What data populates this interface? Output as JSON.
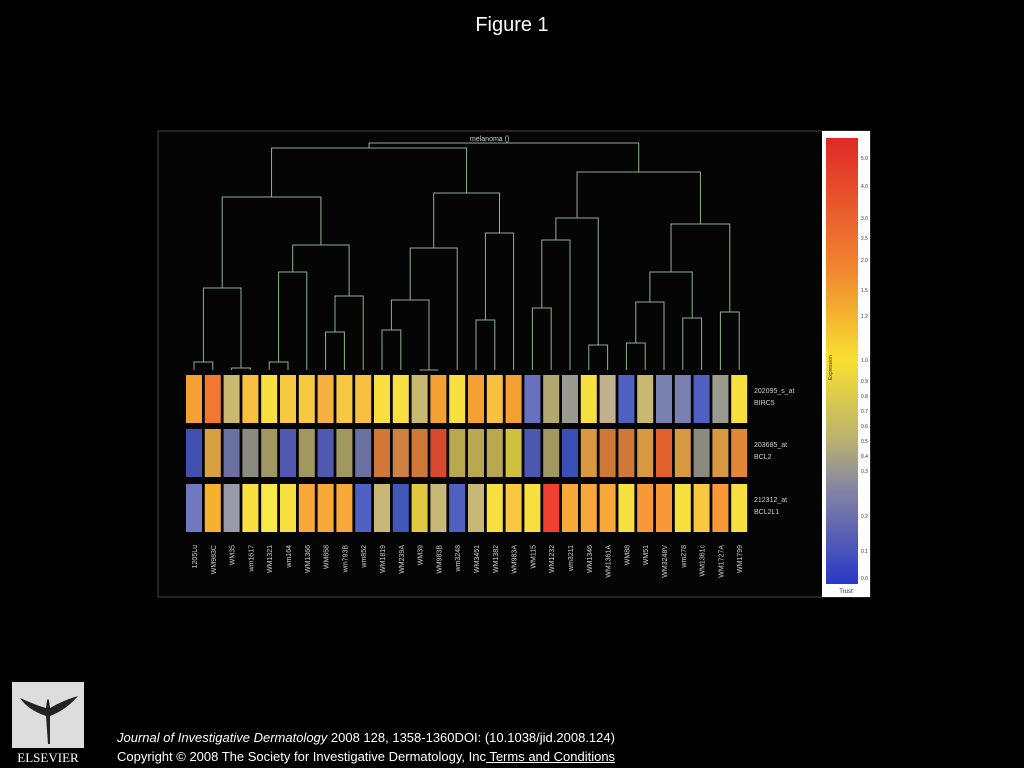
{
  "header": {
    "title": "Figure 1"
  },
  "figure": {
    "tree_label": "melanoma ()",
    "samples": [
      "1205Lu",
      "WM983C",
      "WM35",
      "wm1617",
      "WM1321",
      "wm164",
      "WM1366",
      "WM858",
      "wm793B",
      "wm852",
      "WM1819",
      "WM239A",
      "WM39",
      "WM983B",
      "wm3248",
      "WM3451",
      "WM1382",
      "WM983A",
      "WM115",
      "WM1232",
      "wm3211",
      "WM1346",
      "WM1361A",
      "WM88",
      "WM51",
      "WM3248V",
      "wm278",
      "WM1361c",
      "WM1727A",
      "WM1799"
    ],
    "rows": [
      {
        "probe": "202095_s_at",
        "gene": "BIRC5",
        "colors": [
          "#f5a033",
          "#f07830",
          "#c8b870",
          "#f8c040",
          "#f8e040",
          "#f8c840",
          "#f8c840",
          "#f5b040",
          "#f8c840",
          "#f8c040",
          "#f8e040",
          "#f8e040",
          "#c8b870",
          "#f5a033",
          "#f8e040",
          "#f5a033",
          "#f8c040",
          "#f5a033",
          "#6a70c0",
          "#b0a870",
          "#9a9a90",
          "#f8e040",
          "#c0b090",
          "#5060c0",
          "#c8b870",
          "#7a80b0",
          "#7a80b0",
          "#5060c0",
          "#9a9a90",
          "#f8e040"
        ]
      },
      {
        "probe": "203685_at",
        "gene": "BCL2",
        "colors": [
          "#4050b0",
          "#d8a040",
          "#6a70a0",
          "#8a8a80",
          "#a09860",
          "#5058b0",
          "#a09860",
          "#5058b0",
          "#a09860",
          "#6a70a0",
          "#d07838",
          "#d08040",
          "#d07838",
          "#d84a30",
          "#b8a850",
          "#b8a850",
          "#b8a850",
          "#d0c040",
          "#4a58b0",
          "#a09860",
          "#3a50b8",
          "#d89840",
          "#d07838",
          "#d07838",
          "#d89840",
          "#e06030",
          "#d89840",
          "#8a8a80",
          "#d89840",
          "#e08838"
        ]
      },
      {
        "probe": "212312_at",
        "gene": "BCL2L1",
        "colors": [
          "#7078c0",
          "#f8b030",
          "#9a9aa8",
          "#f8e040",
          "#f8e848",
          "#f8e040",
          "#f8a838",
          "#f8a838",
          "#f8a838",
          "#5060c0",
          "#c8b878",
          "#4058b8",
          "#e0c840",
          "#c8b878",
          "#5060c0",
          "#c8b878",
          "#f8e040",
          "#f8c840",
          "#f8e040",
          "#f04030",
          "#f8a838",
          "#f8a838",
          "#f8a838",
          "#f8e040",
          "#f89838",
          "#f89838",
          "#f8e040",
          "#f8c840",
          "#f89838",
          "#f8e040"
        ]
      }
    ],
    "scale_ticks": [
      "5.0",
      "4.0",
      "3.0",
      "2.5",
      "2.0",
      "1.5",
      "1.2",
      "1.0",
      "0.9",
      "0.8",
      "0.7",
      "0.6",
      "0.5",
      "0.4",
      "0.3",
      "0.2",
      "0.1",
      "0.0"
    ],
    "scale_title": "Expression",
    "scale_footer": "Trust"
  },
  "footer": {
    "journal": "Journal of Investigative Dermatology",
    "citation": " 2008 128, 1358-1360DOI: (10.1038/jid.2008.124)",
    "copyright": "Copyright © 2008 The Society for Investigative Dermatology, Inc",
    "link": " Terms and Conditions",
    "logo": "ELSEVIER"
  }
}
